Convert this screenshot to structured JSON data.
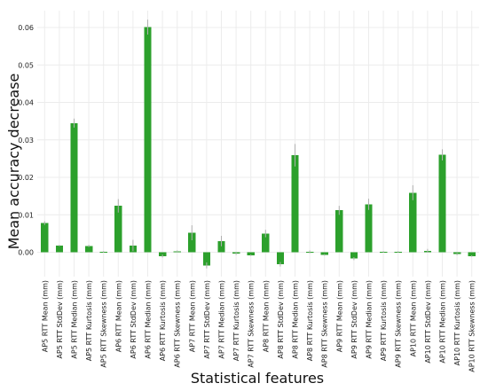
{
  "chart_data": {
    "type": "bar",
    "title": "",
    "xlabel": "Statistical features",
    "ylabel": "Mean accuracy decrease",
    "ylim": [
      -0.0065,
      0.0645
    ],
    "yticks": [
      0.0,
      0.01,
      0.02,
      0.03,
      0.04,
      0.05,
      0.06
    ],
    "ytick_labels": [
      "0.00",
      "0.01",
      "0.02",
      "0.03",
      "0.04",
      "0.05",
      "0.06"
    ],
    "grid": true,
    "legend": "none",
    "bar_color": "#2ca02c",
    "errbar_color": "#b0b0b0",
    "categories": [
      "AP5 RTT Mean (mm)",
      "AP5 RTT StdDev (mm)",
      "AP5 RTT Median (mm)",
      "AP5 RTT Kurtosis (mm)",
      "AP5 RTT Skewness (mm)",
      "AP6 RTT Mean (mm)",
      "AP6 RTT StdDev (mm)",
      "AP6 RTT Median (mm)",
      "AP6 RTT Kurtosis (mm)",
      "AP6 RTT Skewness (mm)",
      "AP7 RTT Mean (mm)",
      "AP7 RTT StdDev (mm)",
      "AP7 RTT Median (mm)",
      "AP7 RTT Kurtosis (mm)",
      "AP7 RTT Skewness (mm)",
      "AP8 RTT Mean (mm)",
      "AP8 RTT StdDev (mm)",
      "AP8 RTT Median (mm)",
      "AP8 RTT Kurtosis (mm)",
      "AP8 RTT Skewness (mm)",
      "AP9 RTT Mean (mm)",
      "AP9 RTT StdDev (mm)",
      "AP9 RTT Median (mm)",
      "AP9 RTT Kurtosis (mm)",
      "AP9 RTT Skewness (mm)",
      "AP10 RTT Mean (mm)",
      "AP10 RTT StdDev (mm)",
      "AP10 RTT Median (mm)",
      "AP10 RTT Kurtosis (mm)",
      "AP10 RTT Skewness (mm)"
    ],
    "values": [
      0.0078,
      0.0018,
      0.0345,
      0.0017,
      0.0001,
      0.0124,
      0.0018,
      0.0601,
      -0.001,
      0.0003,
      0.0052,
      -0.0035,
      0.003,
      -0.0004,
      -0.0008,
      0.005,
      -0.0032,
      0.0259,
      0.0001,
      -0.0007,
      0.0112,
      -0.0017,
      0.0128,
      0.0001,
      0.0001,
      0.0159,
      0.0004,
      0.026,
      -0.0005,
      -0.001
    ],
    "errors": [
      0.0005,
      0.0002,
      0.0012,
      0.0003,
      0.0002,
      0.0018,
      0.0015,
      0.002,
      0.0004,
      0.0002,
      0.002,
      0.0008,
      0.0014,
      0.0003,
      0.0002,
      0.001,
      0.0006,
      0.003,
      0.0004,
      0.0002,
      0.0012,
      0.0004,
      0.0015,
      0.0002,
      0.0002,
      0.002,
      0.0005,
      0.0015,
      0.0003,
      0.0002
    ]
  }
}
